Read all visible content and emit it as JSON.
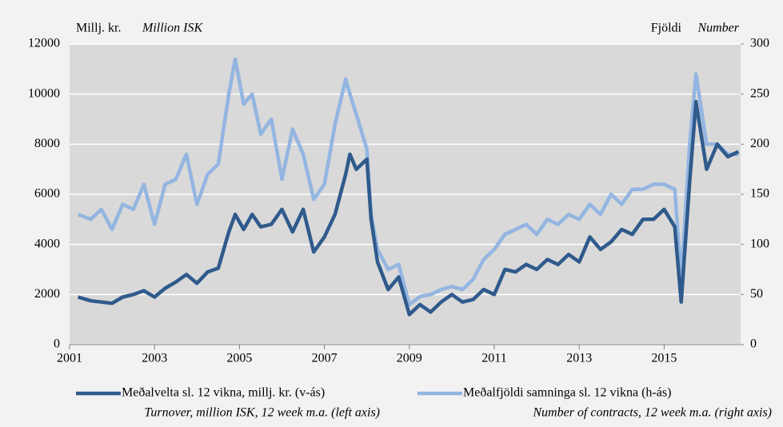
{
  "chart_data": {
    "type": "line",
    "y_label": "Millj. kr.",
    "y_label_en": "Million ISK",
    "y2_label": "Fjöldi",
    "y2_label_en": "Number",
    "x": [
      2001.2,
      2001.5,
      2001.75,
      2002,
      2002.25,
      2002.5,
      2002.75,
      2003,
      2003.25,
      2003.5,
      2003.75,
      2004,
      2004.25,
      2004.5,
      2004.75,
      2004.9,
      2005.1,
      2005.3,
      2005.5,
      2005.75,
      2006,
      2006.25,
      2006.5,
      2006.75,
      2007,
      2007.25,
      2007.5,
      2007.6,
      2007.75,
      2008,
      2008.1,
      2008.25,
      2008.5,
      2008.75,
      2009,
      2009.25,
      2009.5,
      2009.75,
      2010,
      2010.25,
      2010.5,
      2010.75,
      2011,
      2011.25,
      2011.5,
      2011.75,
      2012,
      2012.25,
      2012.5,
      2012.75,
      2013,
      2013.25,
      2013.5,
      2013.75,
      2014,
      2014.25,
      2014.5,
      2014.75,
      2015,
      2015.25,
      2015.4,
      2015.6,
      2015.75,
      2016,
      2016.25,
      2016.5,
      2016.75
    ],
    "series": [
      {
        "name": "Meðalvelta sl. 12 vikna, millj. kr. (v-ás)",
        "name_en": "Turnover, million ISK, 12 week m.a. (left axis)",
        "color": "#2f5a8c",
        "axis": "y",
        "values": [
          1900,
          1750,
          1700,
          1650,
          1900,
          2000,
          2150,
          1900,
          2250,
          2500,
          2800,
          2450,
          2900,
          3050,
          4500,
          5200,
          4600,
          5200,
          4700,
          4800,
          5400,
          4500,
          5400,
          3700,
          4300,
          5200,
          6800,
          7600,
          7000,
          7400,
          5000,
          3300,
          2200,
          2700,
          1200,
          1600,
          1300,
          1700,
          2000,
          1700,
          1800,
          2200,
          2000,
          3000,
          2900,
          3200,
          3000,
          3400,
          3200,
          3600,
          3300,
          4300,
          3800,
          4100,
          4600,
          4400,
          5000,
          5000,
          5400,
          4700,
          1700,
          6500,
          9700,
          7000,
          8000,
          7500,
          7700
        ]
      },
      {
        "name": "Meðalfjöldi samninga sl. 12 vikna (h-ás)",
        "name_en": "Number of contracts, 12 week m.a. (right axis)",
        "color": "#93b5e1",
        "axis": "y2",
        "values": [
          130,
          125,
          135,
          115,
          140,
          135,
          160,
          120,
          160,
          165,
          190,
          140,
          170,
          180,
          250,
          285,
          240,
          250,
          210,
          225,
          165,
          215,
          190,
          145,
          160,
          220,
          265,
          250,
          230,
          195,
          130,
          95,
          75,
          80,
          40,
          48,
          50,
          55,
          58,
          55,
          65,
          85,
          95,
          110,
          115,
          120,
          110,
          125,
          120,
          130,
          125,
          140,
          130,
          150,
          140,
          155,
          155,
          160,
          160,
          155,
          65,
          200,
          270,
          200,
          200,
          190,
          190
        ]
      }
    ],
    "xlim": [
      2001,
      2016.8
    ],
    "xticks": [
      2001,
      2003,
      2005,
      2007,
      2009,
      2011,
      2013,
      2015
    ],
    "ylim": [
      0,
      12000
    ],
    "yticks": [
      0,
      2000,
      4000,
      6000,
      8000,
      10000,
      12000
    ],
    "y2lim": [
      0,
      300
    ],
    "y2ticks": [
      0,
      50,
      100,
      150,
      200,
      250,
      300
    ],
    "grid": true
  }
}
